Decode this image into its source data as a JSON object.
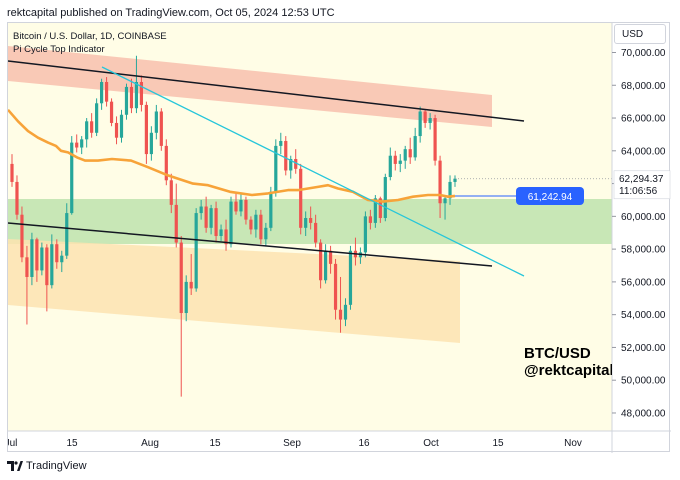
{
  "header": {
    "text": "rektcapital published on TradingView.com, Oct 05, 2024 12:53 UTC"
  },
  "legend": {
    "line1": "Bitcoin / U.S. Dollar, 1D, COINBASE",
    "line2": "Pi Cycle Top Indicator"
  },
  "currency_button": "USD",
  "watermark": {
    "line1": "BTC/USD",
    "line2": "@rektcapital"
  },
  "footer": {
    "brand": "TradingView"
  },
  "colors": {
    "up": "#26a69a",
    "down": "#ef5350",
    "ma": "#f7a339",
    "trend": "#26c6da",
    "resistance_zone": "#f8c3b0",
    "support_zone": "#c5e6b3",
    "channel_zone": "#fde3b0",
    "price_label": "#2962ff"
  },
  "chart_data": {
    "type": "candlestick",
    "x_axis": {
      "ticks": [
        "Jul",
        "15",
        "Aug",
        "15",
        "Sep",
        "16",
        "Oct",
        "15",
        "Nov"
      ]
    },
    "y_axis": {
      "ticks": [
        "70,000.00",
        "68,000.00",
        "66,000.00",
        "64,000.00",
        "62,000.00",
        "60,000.00",
        "58,000.00",
        "56,000.00",
        "54,000.00",
        "52,000.00",
        "50,000.00",
        "48,000.00"
      ],
      "range": [
        46900,
        71800
      ]
    },
    "current_price": {
      "value": "62,294.37",
      "countdown": "11:06:56"
    },
    "ma_label": {
      "value": "61,242.94"
    },
    "candles": [
      [
        63200,
        63800,
        61800,
        62100
      ],
      [
        62100,
        62500,
        59800,
        60100
      ],
      [
        60100,
        60600,
        57200,
        57500
      ],
      [
        57500,
        58200,
        53400,
        56300
      ],
      [
        56300,
        59000,
        55800,
        58600
      ],
      [
        58600,
        58700,
        56000,
        56700
      ],
      [
        56700,
        58400,
        56400,
        58100
      ],
      [
        58100,
        58300,
        54200,
        55800
      ],
      [
        55800,
        58900,
        55600,
        58300
      ],
      [
        58300,
        58600,
        56800,
        57200
      ],
      [
        57200,
        57900,
        56600,
        57600
      ],
      [
        57600,
        60800,
        57400,
        60200
      ],
      [
        60200,
        64900,
        60100,
        64500
      ],
      [
        64500,
        65000,
        63900,
        64200
      ],
      [
        64200,
        64900,
        63800,
        64700
      ],
      [
        64700,
        66000,
        64200,
        65800
      ],
      [
        65800,
        66300,
        64800,
        65100
      ],
      [
        65100,
        67200,
        64900,
        66900
      ],
      [
        66900,
        68400,
        66500,
        68200
      ],
      [
        68200,
        68500,
        66700,
        67000
      ],
      [
        67000,
        67200,
        65500,
        65700
      ],
      [
        65700,
        66100,
        64400,
        64800
      ],
      [
        64800,
        66500,
        64500,
        66200
      ],
      [
        66200,
        68100,
        65900,
        67900
      ],
      [
        67900,
        68400,
        66300,
        66600
      ],
      [
        66600,
        69800,
        66300,
        68200
      ],
      [
        68200,
        68600,
        66400,
        66800
      ],
      [
        66800,
        67000,
        63200,
        63800
      ],
      [
        63800,
        65500,
        63400,
        65100
      ],
      [
        65100,
        66800,
        64700,
        66400
      ],
      [
        66400,
        66600,
        64000,
        64300
      ],
      [
        64300,
        64700,
        61900,
        62200
      ],
      [
        62200,
        62600,
        60200,
        60700
      ],
      [
        60700,
        62000,
        58100,
        58400
      ],
      [
        58400,
        58800,
        49000,
        54100
      ],
      [
        54100,
        56400,
        53600,
        56000
      ],
      [
        56000,
        57700,
        55200,
        55600
      ],
      [
        55600,
        60500,
        55400,
        60200
      ],
      [
        60200,
        61000,
        59800,
        60600
      ],
      [
        60600,
        61200,
        59000,
        59300
      ],
      [
        59300,
        60700,
        58900,
        60500
      ],
      [
        60500,
        60900,
        58400,
        58800
      ],
      [
        58800,
        59500,
        58500,
        59200
      ],
      [
        59200,
        59800,
        57900,
        58300
      ],
      [
        58300,
        61200,
        58100,
        60900
      ],
      [
        60900,
        61500,
        60100,
        60300
      ],
      [
        60300,
        61400,
        60000,
        61000
      ],
      [
        61000,
        61200,
        59500,
        59800
      ],
      [
        59800,
        60000,
        58900,
        59200
      ],
      [
        59200,
        60400,
        58700,
        60100
      ],
      [
        60100,
        60400,
        58300,
        58600
      ],
      [
        58600,
        59600,
        58200,
        59300
      ],
      [
        59300,
        61800,
        59100,
        61500
      ],
      [
        61500,
        64700,
        61200,
        64300
      ],
      [
        64300,
        65100,
        63800,
        64600
      ],
      [
        64600,
        64900,
        62500,
        62800
      ],
      [
        62800,
        63700,
        62300,
        63500
      ],
      [
        63500,
        64100,
        62600,
        62900
      ],
      [
        62900,
        63200,
        58900,
        59300
      ],
      [
        59300,
        60300,
        58800,
        59900
      ],
      [
        59900,
        60600,
        59200,
        59600
      ],
      [
        59600,
        60100,
        58100,
        58400
      ],
      [
        58400,
        58600,
        55600,
        56100
      ],
      [
        56100,
        58300,
        55900,
        57900
      ],
      [
        57900,
        58200,
        56500,
        57100
      ],
      [
        57100,
        57400,
        53700,
        54300
      ],
      [
        54300,
        56300,
        52900,
        53700
      ],
      [
        53700,
        55000,
        53300,
        54600
      ],
      [
        54600,
        58200,
        54300,
        57900
      ],
      [
        57900,
        58700,
        57000,
        57500
      ],
      [
        57500,
        58100,
        57100,
        57800
      ],
      [
        57800,
        60300,
        57500,
        60000
      ],
      [
        60000,
        60400,
        59200,
        59600
      ],
      [
        59600,
        61300,
        59300,
        61100
      ],
      [
        61100,
        61200,
        59600,
        59900
      ],
      [
        59900,
        62600,
        59700,
        62400
      ],
      [
        62400,
        64200,
        62200,
        63700
      ],
      [
        63700,
        64000,
        62800,
        63200
      ],
      [
        63200,
        63800,
        62700,
        63400
      ],
      [
        63400,
        64300,
        62900,
        64100
      ],
      [
        64100,
        64800,
        63200,
        63600
      ],
      [
        63600,
        65400,
        63400,
        64900
      ],
      [
        64900,
        66700,
        64500,
        66400
      ],
      [
        66400,
        66500,
        65400,
        65700
      ],
      [
        65700,
        66300,
        65300,
        66000
      ],
      [
        66000,
        66200,
        63100,
        63400
      ],
      [
        63400,
        63700,
        59900,
        60800
      ],
      [
        60800,
        61300,
        59800,
        61100
      ],
      [
        61100,
        62500,
        60700,
        62100
      ],
      [
        62100,
        62500,
        61800,
        62300
      ]
    ],
    "ma_series": [
      [
        0,
        66500
      ],
      [
        10,
        65800
      ],
      [
        20,
        65200
      ],
      [
        30,
        64800
      ],
      [
        40,
        64500
      ],
      [
        48,
        64300
      ],
      [
        53,
        64000
      ],
      [
        60,
        63900
      ],
      [
        69,
        63600
      ],
      [
        77,
        63400
      ],
      [
        84,
        63400
      ],
      [
        90,
        63400
      ],
      [
        104,
        63500
      ],
      [
        123,
        63400
      ],
      [
        140,
        63000
      ],
      [
        160,
        62500
      ],
      [
        185,
        62000
      ],
      [
        200,
        61900
      ],
      [
        222,
        61500
      ],
      [
        244,
        61300
      ],
      [
        260,
        61400
      ],
      [
        280,
        61600
      ],
      [
        290,
        61600
      ],
      [
        300,
        61700
      ],
      [
        310,
        61800
      ],
      [
        320,
        61900
      ],
      [
        330,
        61700
      ],
      [
        345,
        61500
      ],
      [
        360,
        61000
      ],
      [
        375,
        60900
      ],
      [
        390,
        61000
      ],
      [
        405,
        61200
      ],
      [
        420,
        61300
      ],
      [
        432,
        61300
      ],
      [
        440,
        61200
      ],
      [
        447,
        61250
      ]
    ],
    "annotations": [
      {
        "type": "resistance-zone",
        "label": ""
      },
      {
        "type": "support-zone",
        "label": ""
      },
      {
        "type": "channel-zone",
        "label": ""
      }
    ]
  }
}
